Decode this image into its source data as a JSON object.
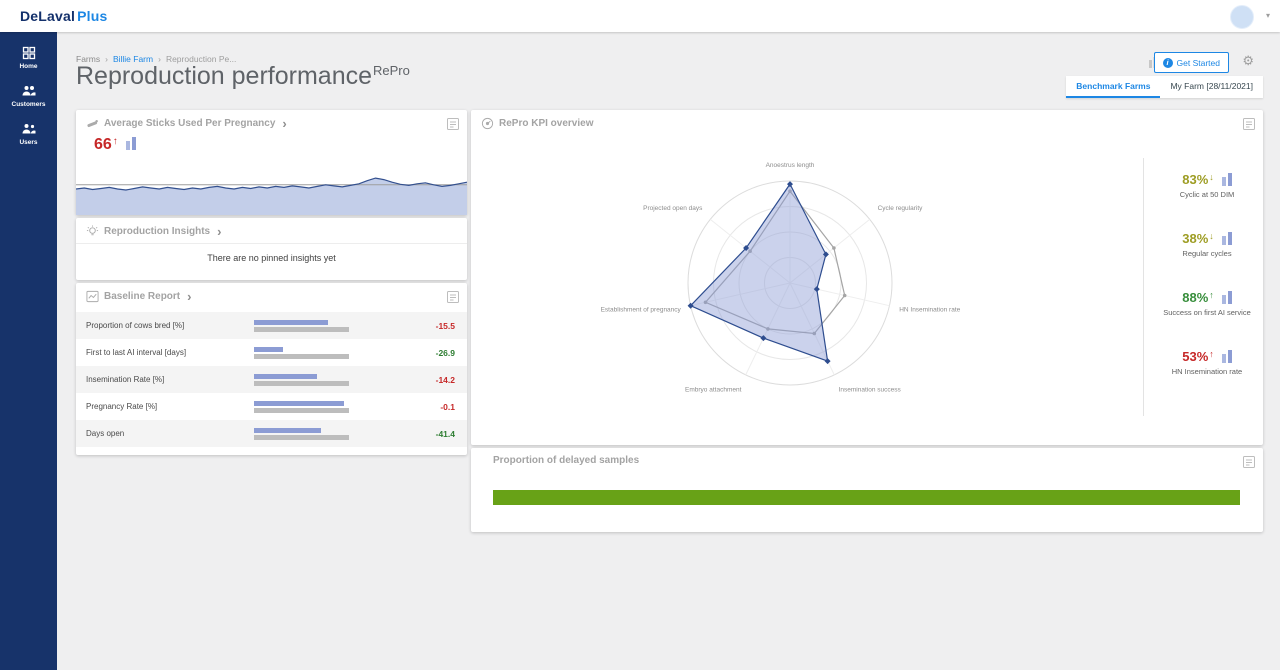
{
  "topbar": {
    "logo_primary": "DeLaval",
    "logo_secondary": "Plus"
  },
  "sidebar": {
    "items": [
      {
        "id": "home",
        "label": "Home"
      },
      {
        "id": "customers",
        "label": "Customers"
      },
      {
        "id": "users",
        "label": "Users"
      }
    ]
  },
  "breadcrumb": {
    "items": [
      "Farms",
      "Billie Farm",
      "Reproduction Pe..."
    ]
  },
  "page": {
    "title": "Reproduction performance",
    "title_superscript": "RePro"
  },
  "actions": {
    "get_started_label": "Get Started"
  },
  "tabs": [
    {
      "label": "Benchmark Farms",
      "active": true
    },
    {
      "label": "My Farm [28/11/2021]",
      "active": false
    }
  ],
  "cards": {
    "sticks": {
      "title": "Average Sticks Used Per Pregnancy",
      "value": "66",
      "trend": "up",
      "value_color": "#c62828",
      "chart_data": {
        "type": "area",
        "points": [
          0.5,
          0.52,
          0.49,
          0.51,
          0.53,
          0.5,
          0.48,
          0.51,
          0.54,
          0.52,
          0.5,
          0.53,
          0.51,
          0.49,
          0.52,
          0.5,
          0.53,
          0.55,
          0.52,
          0.5,
          0.53,
          0.51,
          0.54,
          0.52,
          0.55,
          0.53,
          0.56,
          0.54,
          0.52,
          0.55,
          0.58,
          0.56,
          0.54,
          0.57,
          0.6,
          0.66,
          0.71,
          0.68,
          0.63,
          0.59,
          0.57,
          0.6,
          0.62,
          0.58,
          0.55,
          0.57,
          0.6,
          0.63
        ],
        "benchmark": 0.58,
        "fill": "#c3cee9",
        "line_color": "#33508f",
        "benchmark_color": "#9e9e9e"
      }
    },
    "insights": {
      "title": "Reproduction Insights",
      "empty_message": "There are no pinned insights yet"
    },
    "baseline": {
      "title": "Baseline Report",
      "chart_data": {
        "type": "bar",
        "farm_color": "#8c9cd4",
        "benchmark_color": "#bdbdbd",
        "rows": [
          {
            "label": "Proportion of cows bred [%]",
            "value": "-15.5",
            "value_color": "#c62828",
            "farm": 0.78,
            "benchmark": 1.0
          },
          {
            "label": "First to last AI interval [days]",
            "value": "-26.9",
            "value_color": "#2e7d32",
            "farm": 0.3,
            "benchmark": 1.0
          },
          {
            "label": "Insemination Rate [%]",
            "value": "-14.2",
            "value_color": "#c62828",
            "farm": 0.66,
            "benchmark": 1.0
          },
          {
            "label": "Pregnancy Rate [%]",
            "value": "-0.1",
            "value_color": "#c62828",
            "farm": 0.95,
            "benchmark": 1.0
          },
          {
            "label": "Days open",
            "value": "-41.4",
            "value_color": "#2e7d32",
            "farm": 0.7,
            "benchmark": 1.0
          }
        ]
      }
    },
    "kpi": {
      "title": "RePro KPI overview",
      "chart_data": {
        "type": "radar",
        "axes": [
          "Anoestrus length",
          "Cycle regularity",
          "HN Insemination rate",
          "Insemination success",
          "Embryo attachment",
          "Establishment of pregnancy",
          "Projected open days"
        ],
        "series": [
          {
            "name": "Benchmark",
            "color": "#a5a5a5",
            "fill": "none",
            "values": [
              0.9,
              0.55,
              0.55,
              0.55,
              0.5,
              0.85,
              0.5
            ]
          },
          {
            "name": "My Farm",
            "color": "#2e4d8f",
            "fill": "rgba(140,156,212,0.45)",
            "values": [
              0.97,
              0.45,
              0.27,
              0.85,
              0.6,
              1.0,
              0.55
            ]
          }
        ]
      },
      "kpis": [
        {
          "value": "83%",
          "trend": "down",
          "color": "#9e9d24",
          "label": "Cyclic at 50 DIM"
        },
        {
          "value": "38%",
          "trend": "down",
          "color": "#9e9d24",
          "label": "Regular cycles"
        },
        {
          "value": "88%",
          "trend": "up",
          "color": "#388e3c",
          "label": "Success on first AI service"
        },
        {
          "value": "53%",
          "trend": "up",
          "color": "#c62828",
          "label": "HN Insemination rate"
        }
      ]
    },
    "delayed": {
      "title": "Proportion of delayed samples",
      "chart_data": {
        "type": "bar",
        "fraction": 1.0,
        "color": "#68a217"
      }
    }
  }
}
